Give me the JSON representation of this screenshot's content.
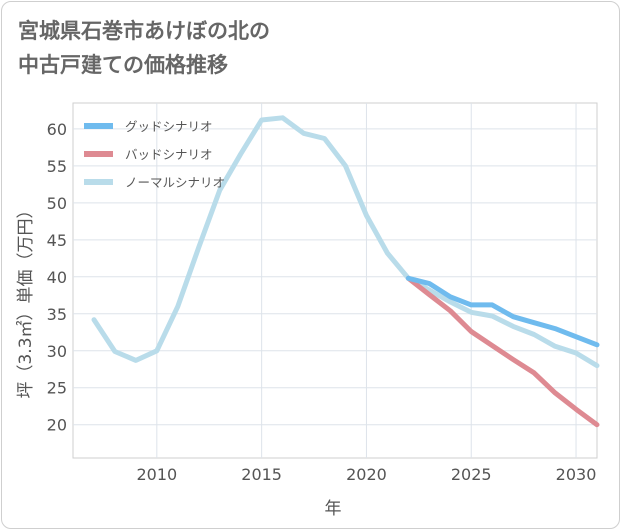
{
  "page": {
    "title_line1": "宮城県石巻市あけぼの北の",
    "title_line2": "中古戸建ての価格推移"
  },
  "chart_data": {
    "type": "line",
    "title": "宮城県石巻市あけぼの北の中古戸建ての価格推移",
    "xlabel": "年",
    "ylabel": "坪（3.3㎡）単価（万円）",
    "xlim": [
      2006,
      2031
    ],
    "ylim": [
      15.5,
      63.5
    ],
    "xticks": [
      2010,
      2015,
      2020,
      2025,
      2030
    ],
    "yticks": [
      20,
      25,
      30,
      35,
      40,
      45,
      50,
      55,
      60
    ],
    "grid": true,
    "legend_position": "top-left",
    "series": [
      {
        "name": "グッドシナリオ",
        "color": "#6fbbee",
        "x": [
          2022,
          2023,
          2024,
          2025,
          2026,
          2027,
          2028,
          2029,
          2030,
          2031
        ],
        "values": [
          39.8,
          39.1,
          37.3,
          36.2,
          36.2,
          34.6,
          33.8,
          33.0,
          31.9,
          30.8
        ]
      },
      {
        "name": "バッドシナリオ",
        "color": "#de8a92",
        "x": [
          2022,
          2023,
          2024,
          2025,
          2026,
          2027,
          2028,
          2029,
          2030,
          2031
        ],
        "values": [
          39.8,
          37.6,
          35.4,
          32.6,
          30.7,
          28.8,
          27.0,
          24.3,
          22.1,
          20.0
        ]
      },
      {
        "name": "ノーマルシナリオ",
        "color": "#b9dcea",
        "x": [
          2007,
          2008,
          2009,
          2010,
          2011,
          2012,
          2013,
          2014,
          2015,
          2016,
          2017,
          2018,
          2019,
          2020,
          2021,
          2022,
          2023,
          2024,
          2025,
          2026,
          2027,
          2028,
          2029,
          2030,
          2031
        ],
        "values": [
          34.2,
          29.9,
          28.7,
          30.0,
          36.0,
          44.0,
          51.7,
          56.6,
          61.2,
          61.5,
          59.4,
          58.7,
          55.0,
          48.3,
          43.2,
          39.8,
          38.2,
          36.6,
          35.2,
          34.7,
          33.3,
          32.2,
          30.6,
          29.7,
          28.0
        ]
      }
    ]
  }
}
